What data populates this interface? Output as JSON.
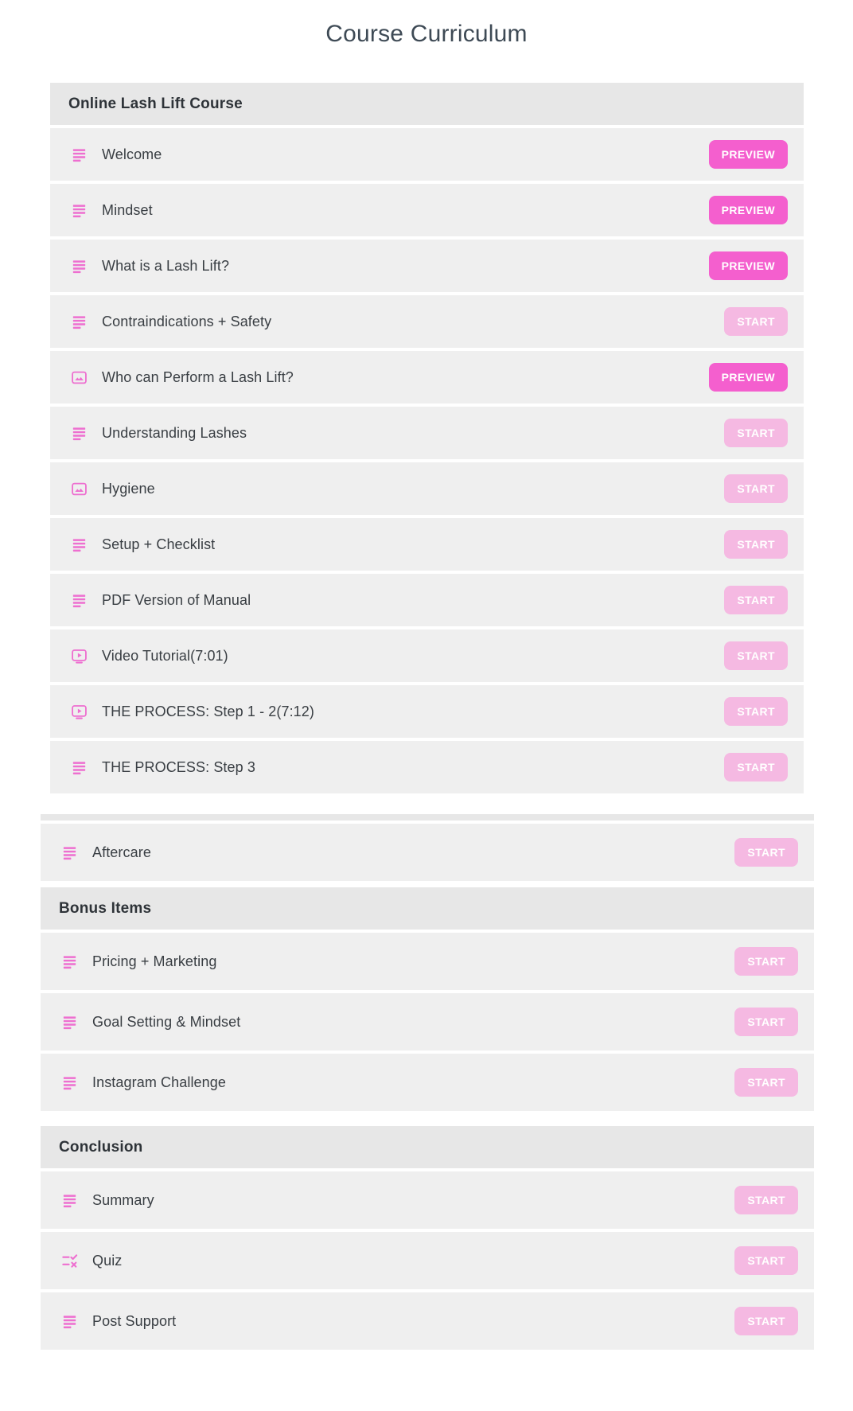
{
  "page": {
    "title": "Course Curriculum"
  },
  "buttons": {
    "preview": "PREVIEW",
    "start": "START"
  },
  "colors": {
    "preview_button": "#f45fce",
    "start_button": "#f5b9e2",
    "icon_pink": "#ee6fd0",
    "section_header_bg": "#e7e7e7",
    "row_bg": "#efefef",
    "title_text": "#3e4a55",
    "header_text": "#2e3338",
    "row_text": "#393e43"
  },
  "icon_names": {
    "text": "text-lesson-icon",
    "image": "image-lesson-icon",
    "video": "video-lesson-icon",
    "quiz": "quiz-lesson-icon"
  },
  "sections": [
    {
      "title": "Online Lash Lift Course",
      "variant": "narrow",
      "items": [
        {
          "icon": "text",
          "label": "Welcome",
          "action": "preview"
        },
        {
          "icon": "text",
          "label": "Mindset",
          "action": "preview"
        },
        {
          "icon": "text",
          "label": "What is a Lash Lift?",
          "action": "preview"
        },
        {
          "icon": "text",
          "label": "Contraindications + Safety",
          "action": "start"
        },
        {
          "icon": "image",
          "label": "Who can Perform a Lash Lift?",
          "action": "preview"
        },
        {
          "icon": "text",
          "label": "Understanding Lashes",
          "action": "start"
        },
        {
          "icon": "image",
          "label": "Hygiene",
          "action": "start"
        },
        {
          "icon": "text",
          "label": "Setup + Checklist",
          "action": "start"
        },
        {
          "icon": "text",
          "label": "PDF Version of Manual",
          "action": "start"
        },
        {
          "icon": "video",
          "label": "Video Tutorial(7:01)",
          "action": "start"
        },
        {
          "icon": "video",
          "label": "THE PROCESS: Step 1 - 2(7:12)",
          "action": "start"
        },
        {
          "icon": "text",
          "label": "THE PROCESS: Step 3",
          "action": "start"
        }
      ]
    },
    {
      "title": "",
      "variant": "wide",
      "items": [
        {
          "icon": "text",
          "label": "Aftercare",
          "action": "start"
        }
      ]
    },
    {
      "title": "Bonus Items",
      "variant": "wide",
      "items": [
        {
          "icon": "text",
          "label": "Pricing + Marketing",
          "action": "start"
        },
        {
          "icon": "text",
          "label": "Goal Setting & Mindset",
          "action": "start"
        },
        {
          "icon": "text",
          "label": "Instagram Challenge",
          "action": "start"
        }
      ]
    },
    {
      "title": "Conclusion",
      "variant": "wide",
      "items": [
        {
          "icon": "text",
          "label": "Summary",
          "action": "start"
        },
        {
          "icon": "quiz",
          "label": "Quiz",
          "action": "start"
        },
        {
          "icon": "text",
          "label": "Post Support",
          "action": "start"
        }
      ]
    }
  ]
}
